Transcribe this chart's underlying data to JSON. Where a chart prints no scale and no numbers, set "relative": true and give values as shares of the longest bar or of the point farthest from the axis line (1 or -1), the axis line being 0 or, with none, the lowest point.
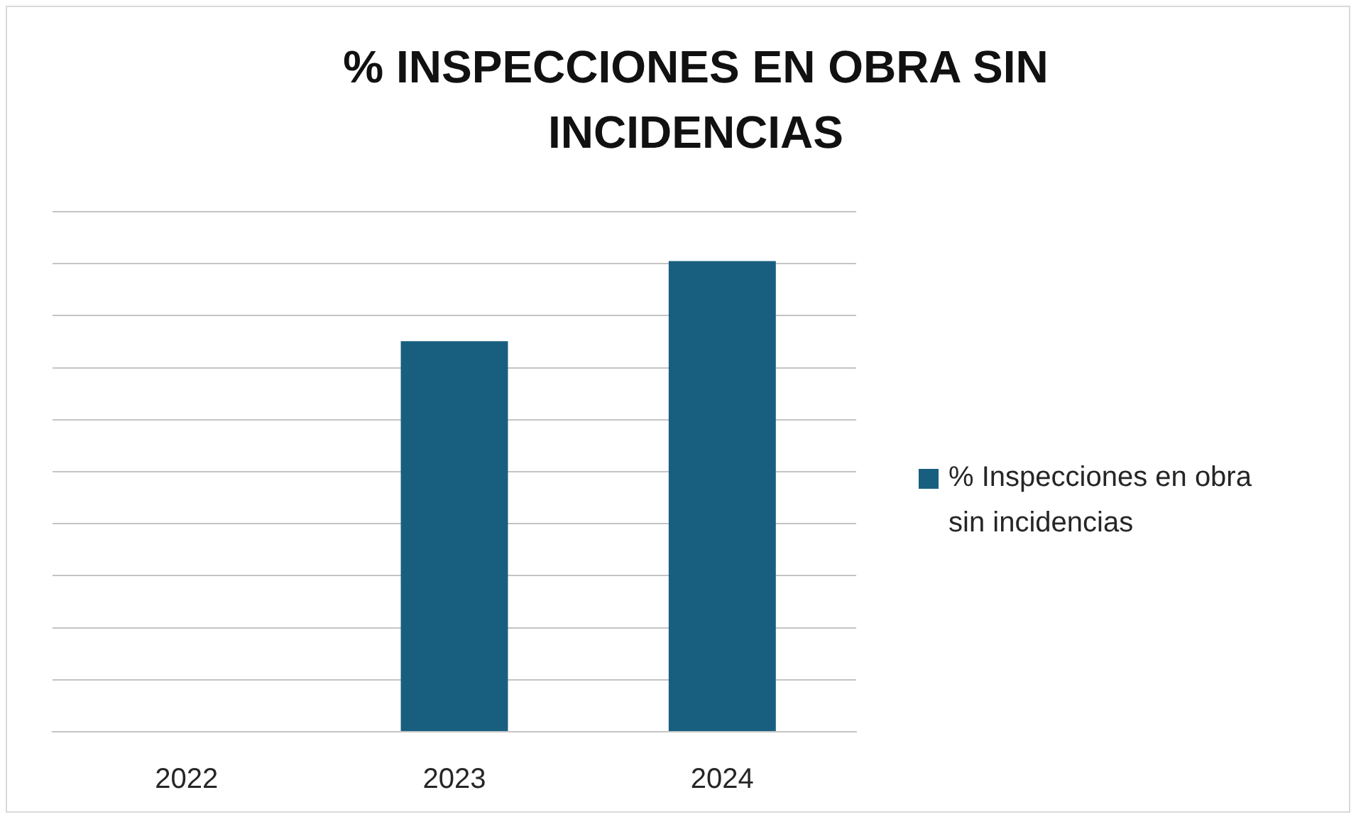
{
  "chart_data": {
    "type": "bar",
    "title": "% INSPECCIONES EN OBRA SIN INCIDENCIAS",
    "categories": [
      "2022",
      "2023",
      "2024"
    ],
    "series": [
      {
        "name": "% Inspecciones en obra sin incidencias",
        "color": "#185f7f",
        "values": [
          null,
          0.83,
          1
        ]
      }
    ],
    "relative": true,
    "grid": "y",
    "legend": "right"
  }
}
